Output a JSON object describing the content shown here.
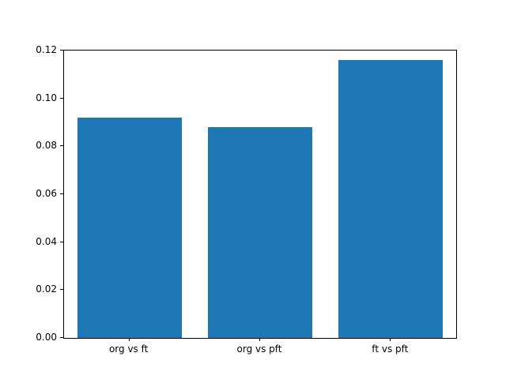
{
  "chart_data": {
    "type": "bar",
    "categories": [
      "org vs ft",
      "org vs pft",
      "ft vs pft"
    ],
    "values": [
      0.092,
      0.088,
      0.116
    ],
    "title": "",
    "xlabel": "",
    "ylabel": "",
    "ylim": [
      0,
      0.12
    ],
    "y_ticks": [
      0.0,
      0.02,
      0.04,
      0.06,
      0.08,
      0.1,
      0.12
    ],
    "y_tick_labels": [
      "0.00",
      "0.02",
      "0.04",
      "0.06",
      "0.08",
      "0.10",
      "0.12"
    ],
    "bar_color": "#1f77b4",
    "background_color": "#ffffff",
    "spine_color": "#000000",
    "grid": false,
    "legend": null,
    "bar_width_fraction": 0.8
  }
}
